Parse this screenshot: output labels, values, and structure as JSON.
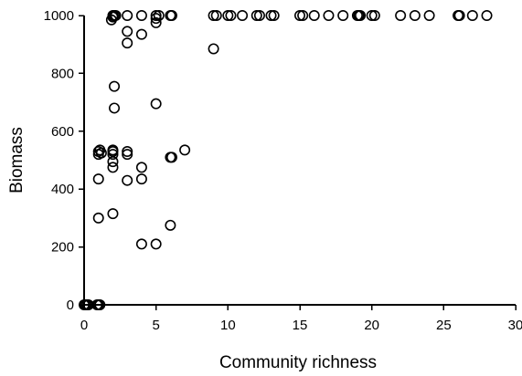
{
  "chart_data": {
    "type": "scatter",
    "xlabel": "Community richness",
    "ylabel": "Biomass",
    "xlim": [
      0,
      30
    ],
    "ylim": [
      0,
      1000
    ],
    "xticks": [
      0,
      5,
      10,
      15,
      20,
      25,
      30
    ],
    "yticks": [
      0,
      200,
      400,
      600,
      800,
      1000
    ],
    "grid": false,
    "marker": "open-circle",
    "colors": {
      "axis": "#000000",
      "marker_stroke": "#000000",
      "background": "#ffffff"
    },
    "points": [
      {
        "x": 0,
        "y": 0
      },
      {
        "x": 0.1,
        "y": 0
      },
      {
        "x": 0.2,
        "y": 0
      },
      {
        "x": 0.3,
        "y": 0
      },
      {
        "x": 0.9,
        "y": 0
      },
      {
        "x": 1.0,
        "y": 0
      },
      {
        "x": 1.1,
        "y": 0
      },
      {
        "x": 1,
        "y": 300
      },
      {
        "x": 1,
        "y": 435
      },
      {
        "x": 1,
        "y": 520
      },
      {
        "x": 1,
        "y": 530
      },
      {
        "x": 1.1,
        "y": 535
      },
      {
        "x": 1.2,
        "y": 525
      },
      {
        "x": 2,
        "y": 315
      },
      {
        "x": 2,
        "y": 475
      },
      {
        "x": 2,
        "y": 495
      },
      {
        "x": 2,
        "y": 520
      },
      {
        "x": 2,
        "y": 530
      },
      {
        "x": 2,
        "y": 535
      },
      {
        "x": 2.1,
        "y": 680
      },
      {
        "x": 2.1,
        "y": 755
      },
      {
        "x": 1.9,
        "y": 985
      },
      {
        "x": 2,
        "y": 995
      },
      {
        "x": 2,
        "y": 1000
      },
      {
        "x": 2.1,
        "y": 1000
      },
      {
        "x": 2.2,
        "y": 1000
      },
      {
        "x": 3,
        "y": 430
      },
      {
        "x": 3,
        "y": 520
      },
      {
        "x": 3,
        "y": 530
      },
      {
        "x": 3,
        "y": 905
      },
      {
        "x": 3,
        "y": 945
      },
      {
        "x": 3,
        "y": 1000
      },
      {
        "x": 4,
        "y": 210
      },
      {
        "x": 4,
        "y": 435
      },
      {
        "x": 4,
        "y": 475
      },
      {
        "x": 4,
        "y": 935
      },
      {
        "x": 4,
        "y": 1000
      },
      {
        "x": 5,
        "y": 210
      },
      {
        "x": 5,
        "y": 695
      },
      {
        "x": 5,
        "y": 975
      },
      {
        "x": 5,
        "y": 990
      },
      {
        "x": 5,
        "y": 1000
      },
      {
        "x": 5.2,
        "y": 1000
      },
      {
        "x": 6,
        "y": 275
      },
      {
        "x": 6,
        "y": 510
      },
      {
        "x": 6.1,
        "y": 510
      },
      {
        "x": 6,
        "y": 1000
      },
      {
        "x": 6.1,
        "y": 1000
      },
      {
        "x": 7,
        "y": 535
      },
      {
        "x": 9,
        "y": 885
      },
      {
        "x": 9,
        "y": 1000
      },
      {
        "x": 9.2,
        "y": 1000
      },
      {
        "x": 10,
        "y": 1000
      },
      {
        "x": 10.2,
        "y": 1000
      },
      {
        "x": 11,
        "y": 1000
      },
      {
        "x": 12,
        "y": 1000
      },
      {
        "x": 12.2,
        "y": 1000
      },
      {
        "x": 13,
        "y": 1000
      },
      {
        "x": 13.2,
        "y": 1000
      },
      {
        "x": 15,
        "y": 1000
      },
      {
        "x": 15.2,
        "y": 1000
      },
      {
        "x": 16,
        "y": 1000
      },
      {
        "x": 17,
        "y": 1000
      },
      {
        "x": 18,
        "y": 1000
      },
      {
        "x": 19,
        "y": 1000
      },
      {
        "x": 19.1,
        "y": 1000
      },
      {
        "x": 19.2,
        "y": 1000
      },
      {
        "x": 20,
        "y": 1000
      },
      {
        "x": 20.2,
        "y": 1000
      },
      {
        "x": 22,
        "y": 1000
      },
      {
        "x": 23,
        "y": 1000
      },
      {
        "x": 24,
        "y": 1000
      },
      {
        "x": 26,
        "y": 1000
      },
      {
        "x": 26.1,
        "y": 1000
      },
      {
        "x": 27,
        "y": 1000
      },
      {
        "x": 28,
        "y": 1000
      }
    ]
  }
}
